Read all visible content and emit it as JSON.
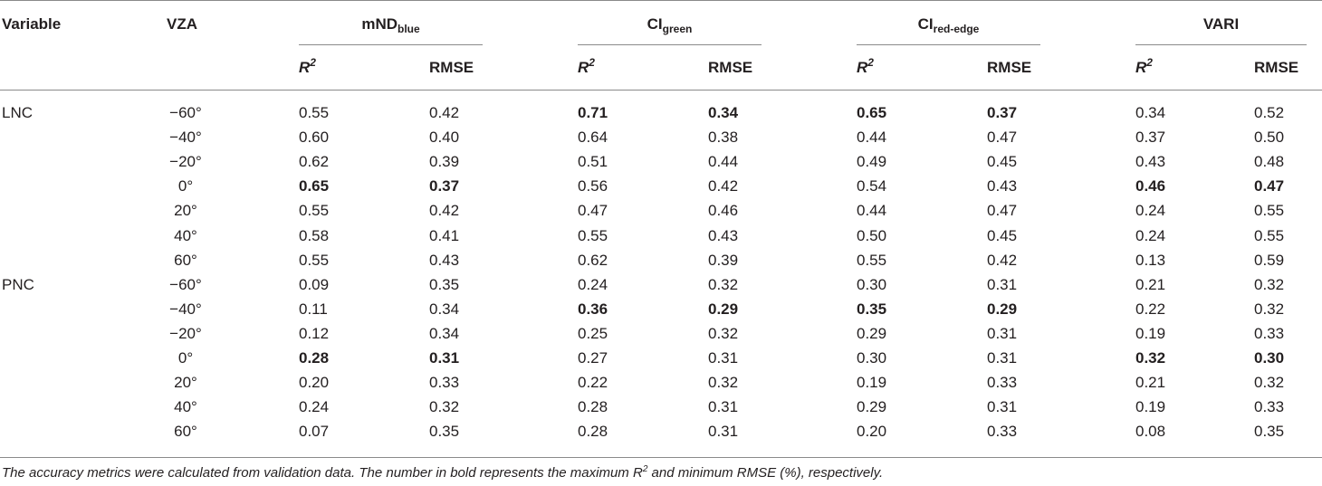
{
  "table": {
    "header": {
      "variable": "Variable",
      "vza": "VZA",
      "groups": [
        {
          "base": "mND",
          "sub": "blue"
        },
        {
          "base": "CI",
          "sub": "green"
        },
        {
          "base": "CI",
          "sub": "red-edge"
        },
        {
          "base": "VARI",
          "sub": ""
        }
      ],
      "r2_base": "R",
      "r2_sup": "2",
      "rmse": "RMSE"
    },
    "rows": [
      {
        "variable": "LNC",
        "vza": "−60°",
        "values": [
          "0.55",
          "0.42",
          "0.71",
          "0.34",
          "0.65",
          "0.37",
          "0.34",
          "0.52"
        ],
        "bold": [
          false,
          false,
          true,
          true,
          true,
          true,
          false,
          false
        ]
      },
      {
        "variable": "",
        "vza": "−40°",
        "values": [
          "0.60",
          "0.40",
          "0.64",
          "0.38",
          "0.44",
          "0.47",
          "0.37",
          "0.50"
        ],
        "bold": [
          false,
          false,
          false,
          false,
          false,
          false,
          false,
          false
        ]
      },
      {
        "variable": "",
        "vza": "−20°",
        "values": [
          "0.62",
          "0.39",
          "0.51",
          "0.44",
          "0.49",
          "0.45",
          "0.43",
          "0.48"
        ],
        "bold": [
          false,
          false,
          false,
          false,
          false,
          false,
          false,
          false
        ]
      },
      {
        "variable": "",
        "vza": "0°",
        "values": [
          "0.65",
          "0.37",
          "0.56",
          "0.42",
          "0.54",
          "0.43",
          "0.46",
          "0.47"
        ],
        "bold": [
          true,
          true,
          false,
          false,
          false,
          false,
          true,
          true
        ]
      },
      {
        "variable": "",
        "vza": "20°",
        "values": [
          "0.55",
          "0.42",
          "0.47",
          "0.46",
          "0.44",
          "0.47",
          "0.24",
          "0.55"
        ],
        "bold": [
          false,
          false,
          false,
          false,
          false,
          false,
          false,
          false
        ]
      },
      {
        "variable": "",
        "vza": "40°",
        "values": [
          "0.58",
          "0.41",
          "0.55",
          "0.43",
          "0.50",
          "0.45",
          "0.24",
          "0.55"
        ],
        "bold": [
          false,
          false,
          false,
          false,
          false,
          false,
          false,
          false
        ]
      },
      {
        "variable": "",
        "vza": "60°",
        "values": [
          "0.55",
          "0.43",
          "0.62",
          "0.39",
          "0.55",
          "0.42",
          "0.13",
          "0.59"
        ],
        "bold": [
          false,
          false,
          false,
          false,
          false,
          false,
          false,
          false
        ]
      },
      {
        "variable": "PNC",
        "vza": "−60°",
        "values": [
          "0.09",
          "0.35",
          "0.24",
          "0.32",
          "0.30",
          "0.31",
          "0.21",
          "0.32"
        ],
        "bold": [
          false,
          false,
          false,
          false,
          false,
          false,
          false,
          false
        ]
      },
      {
        "variable": "",
        "vza": "−40°",
        "values": [
          "0.11",
          "0.34",
          "0.36",
          "0.29",
          "0.35",
          "0.29",
          "0.22",
          "0.32"
        ],
        "bold": [
          false,
          false,
          true,
          true,
          true,
          true,
          false,
          false
        ]
      },
      {
        "variable": "",
        "vza": "−20°",
        "values": [
          "0.12",
          "0.34",
          "0.25",
          "0.32",
          "0.29",
          "0.31",
          "0.19",
          "0.33"
        ],
        "bold": [
          false,
          false,
          false,
          false,
          false,
          false,
          false,
          false
        ]
      },
      {
        "variable": "",
        "vza": "0°",
        "values": [
          "0.28",
          "0.31",
          "0.27",
          "0.31",
          "0.30",
          "0.31",
          "0.32",
          "0.30"
        ],
        "bold": [
          true,
          true,
          false,
          false,
          false,
          false,
          true,
          true
        ]
      },
      {
        "variable": "",
        "vza": "20°",
        "values": [
          "0.20",
          "0.33",
          "0.22",
          "0.32",
          "0.19",
          "0.33",
          "0.21",
          "0.32"
        ],
        "bold": [
          false,
          false,
          false,
          false,
          false,
          false,
          false,
          false
        ]
      },
      {
        "variable": "",
        "vza": "40°",
        "values": [
          "0.24",
          "0.32",
          "0.28",
          "0.31",
          "0.29",
          "0.31",
          "0.19",
          "0.33"
        ],
        "bold": [
          false,
          false,
          false,
          false,
          false,
          false,
          false,
          false
        ]
      },
      {
        "variable": "",
        "vza": "60°",
        "values": [
          "0.07",
          "0.35",
          "0.28",
          "0.31",
          "0.20",
          "0.33",
          "0.08",
          "0.35"
        ],
        "bold": [
          false,
          false,
          false,
          false,
          false,
          false,
          false,
          false
        ]
      }
    ],
    "footnote": {
      "before": "The accuracy metrics were calculated from validation data. The number in bold represents the maximum R",
      "sup": "2",
      "after": " and minimum RMSE (%), respectively."
    }
  }
}
